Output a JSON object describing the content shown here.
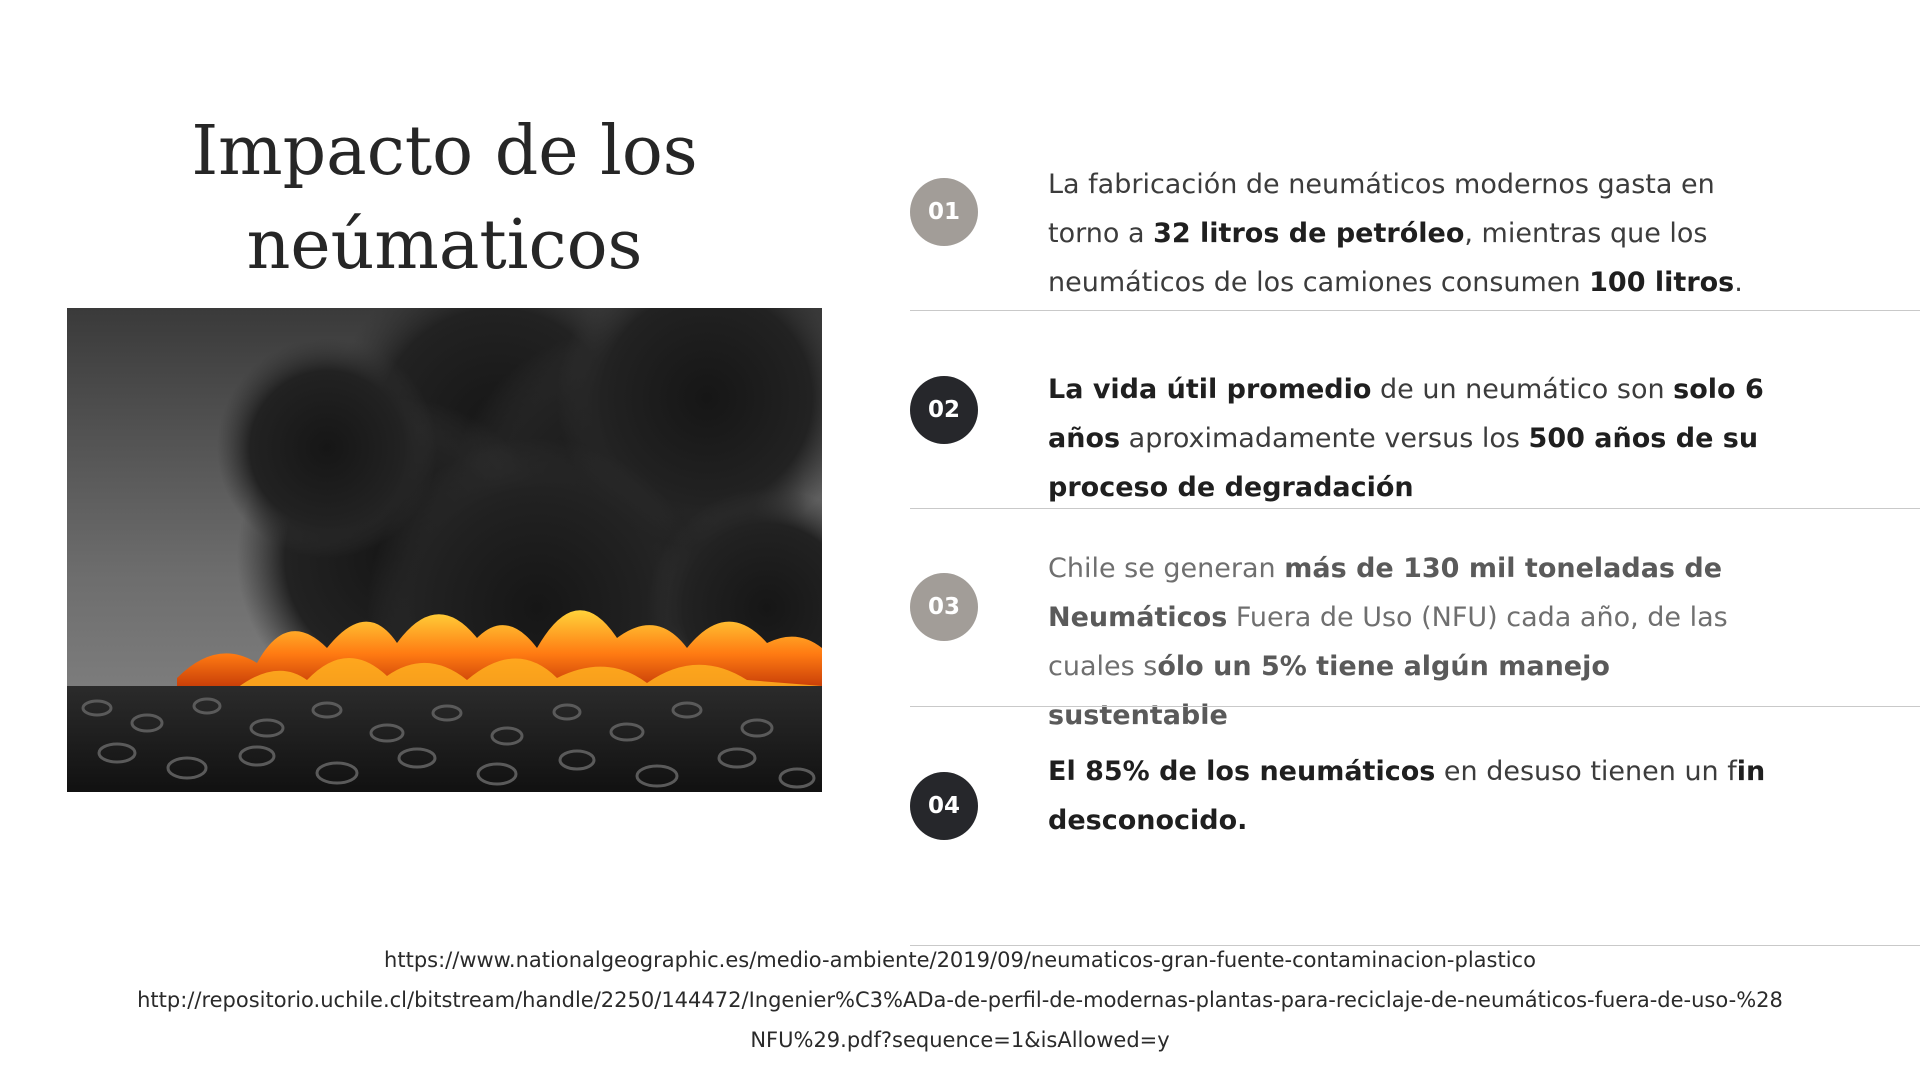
{
  "title_line1": "Impacto de los",
  "title_line2": "neúmaticos",
  "photo_icon": "burning-tires-photo",
  "items": [
    {
      "number": "01",
      "segments": [
        {
          "t": "La fabricación de neumáticos modernos ",
          "b": false
        },
        {
          "t": "gasta en torno a ",
          "b": false
        },
        {
          "t": "32 litros de petróleo",
          "b": true
        },
        {
          "t": ", mientras que los neumáticos de los camiones consumen ",
          "b": false
        },
        {
          "t": "100 litros",
          "b": true
        },
        {
          "t": ".",
          "b": false
        }
      ]
    },
    {
      "number": "02",
      "segments": [
        {
          "t": "La vida útil promedio",
          "b": true
        },
        {
          "t": " de un neumático son ",
          "b": false
        },
        {
          "t": "solo 6 años",
          "b": true
        },
        {
          "t": " aproximadamente versus los  ",
          "b": false
        },
        {
          "t": "500 años de su proceso de degradación",
          "b": true
        }
      ]
    },
    {
      "number": "03",
      "segments": [
        {
          "t": "Chile se generan ",
          "b": false
        },
        {
          "t": "más de 130 mil toneladas de Neumáticos",
          "b": true
        },
        {
          "t": " Fuera de Uso (NFU) cada año, de las cuales s",
          "b": false
        },
        {
          "t": "ólo un 5% tiene algún manejo sustentable",
          "b": true
        }
      ]
    },
    {
      "number": "04",
      "segments": [
        {
          "t": "El 85% de los neumáticos",
          "b": true
        },
        {
          "t": " en desuso tienen un f",
          "b": false
        },
        {
          "t": "in desconocido.",
          "b": true
        }
      ]
    }
  ],
  "references": [
    "https://www.nationalgeographic.es/medio-ambiente/2019/09/neumaticos-gran-fuente-contaminacion-plastico",
    "http://repositorio.uchile.cl/bitstream/handle/2250/144472/Ingenier%C3%ADa-de-perfil-de-modernas-plantas-para-reciclaje-de-neumáticos-fuera-de-uso-%28",
    "NFU%29.pdf?sequence=1&isAllowed=y"
  ]
}
